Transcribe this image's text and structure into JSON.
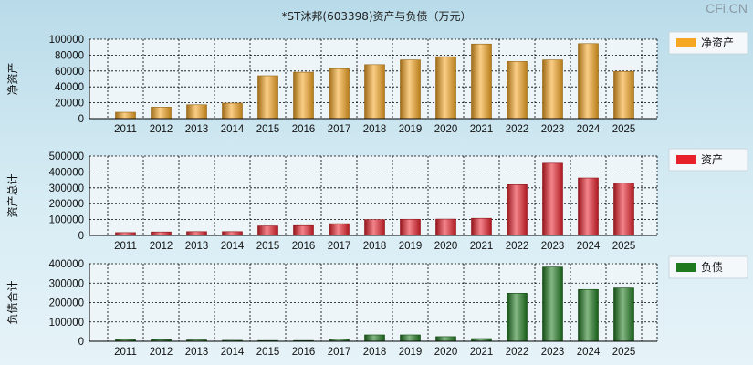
{
  "title": "*ST沐邦(603398)资产与负债（万元）",
  "watermark": "CFi.CN",
  "chart_data": [
    {
      "type": "bar",
      "ylabel": "净资产",
      "legend": "净资产",
      "color": "#f5a623",
      "categories": [
        "2011",
        "2012",
        "2013",
        "2014",
        "2015",
        "2016",
        "2017",
        "2018",
        "2019",
        "2020",
        "2021",
        "2022",
        "2023",
        "2024",
        "2025"
      ],
      "values": [
        8000,
        14500,
        17500,
        19500,
        54000,
        58500,
        63000,
        68000,
        74000,
        78000,
        94000,
        72000,
        74000,
        94500,
        59500
      ],
      "ylim": [
        0,
        100000
      ],
      "yticks": [
        0,
        20000,
        40000,
        60000,
        80000,
        100000
      ],
      "grid": true,
      "legend_position": "right"
    },
    {
      "type": "bar",
      "ylabel": "资产总计",
      "legend": "资产",
      "color": "#e8202a",
      "categories": [
        "2011",
        "2012",
        "2013",
        "2014",
        "2015",
        "2016",
        "2017",
        "2018",
        "2019",
        "2020",
        "2021",
        "2022",
        "2023",
        "2024",
        "2025"
      ],
      "values": [
        18000,
        22000,
        24000,
        24000,
        60000,
        62000,
        74000,
        100000,
        102000,
        103000,
        108000,
        320000,
        455000,
        362000,
        330000
      ],
      "ylim": [
        0,
        500000
      ],
      "yticks": [
        0,
        100000,
        200000,
        300000,
        400000,
        500000
      ],
      "grid": true,
      "legend_position": "right"
    },
    {
      "type": "bar",
      "ylabel": "负债合计",
      "legend": "负债",
      "color": "#1f7a1f",
      "categories": [
        "2011",
        "2012",
        "2013",
        "2014",
        "2015",
        "2016",
        "2017",
        "2018",
        "2019",
        "2020",
        "2021",
        "2022",
        "2023",
        "2024",
        "2025"
      ],
      "values": [
        9000,
        8000,
        7000,
        5000,
        4000,
        4000,
        11000,
        33000,
        33000,
        24000,
        14000,
        248000,
        383000,
        267000,
        275000
      ],
      "ylim": [
        0,
        400000
      ],
      "yticks": [
        0,
        100000,
        200000,
        300000,
        400000
      ],
      "grid": true,
      "legend_position": "right"
    }
  ]
}
